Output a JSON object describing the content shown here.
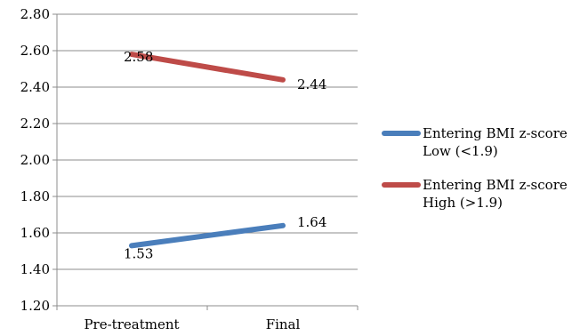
{
  "chart_data": {
    "type": "line",
    "title": "",
    "xlabel": "",
    "ylabel": "",
    "categories": [
      "Pre-treatment",
      "Final"
    ],
    "ylim": [
      1.2,
      2.8
    ],
    "yticks": [
      "1.20",
      "1.40",
      "1.60",
      "1.80",
      "2.00",
      "2.20",
      "2.40",
      "2.60",
      "2.80"
    ],
    "grid": true,
    "legend_position": "right",
    "series": [
      {
        "name_lines": [
          "Entering BMI z-score",
          "Low (<1.9)"
        ],
        "values": [
          1.53,
          1.64
        ],
        "labels": [
          "1.53",
          "1.64"
        ],
        "color": "#4A7EBB"
      },
      {
        "name_lines": [
          "Entering BMI z-score",
          "High (>1.9)"
        ],
        "values": [
          2.58,
          2.44
        ],
        "labels": [
          "2.58",
          "2.44"
        ],
        "color": "#BE4B48"
      }
    ]
  }
}
